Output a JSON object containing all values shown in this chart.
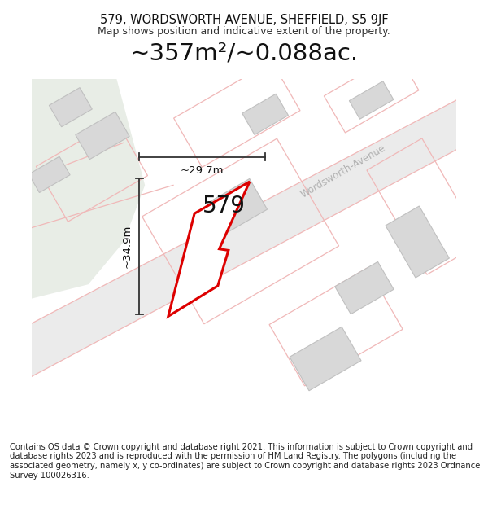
{
  "title_line1": "579, WORDSWORTH AVENUE, SHEFFIELD, S5 9JF",
  "title_line2": "Map shows position and indicative extent of the property.",
  "area_text": "~357m²/~0.088ac.",
  "property_number": "579",
  "dim_vertical": "~34.9m",
  "dim_horizontal": "~29.7m",
  "street_label": "Wordsworth-Avenue",
  "footer_text": "Contains OS data © Crown copyright and database right 2021. This information is subject to Crown copyright and database rights 2023 and is reproduced with the permission of HM Land Registry. The polygons (including the associated geometry, namely x, y co-ordinates) are subject to Crown copyright and database rights 2023 Ordnance Survey 100026316.",
  "bg_color": "#ffffff",
  "map_bg_color": "#f0f0f0",
  "green_area_color": "#e8ede6",
  "road_color": "#e8e8e8",
  "road_line_color": "#f0b8b8",
  "building_color": "#d8d8d8",
  "building_edge_color": "#c0c0c0",
  "property_fill": "#ffffff",
  "property_edge": "#dd0000",
  "dim_line_color": "#333333",
  "street_label_color": "#b0b0b0",
  "title_fontsize": 10.5,
  "subtitle_fontsize": 9,
  "area_fontsize": 21,
  "property_num_fontsize": 20,
  "dim_fontsize": 9.5,
  "street_fontsize": 8.5,
  "footer_fontsize": 7.2
}
